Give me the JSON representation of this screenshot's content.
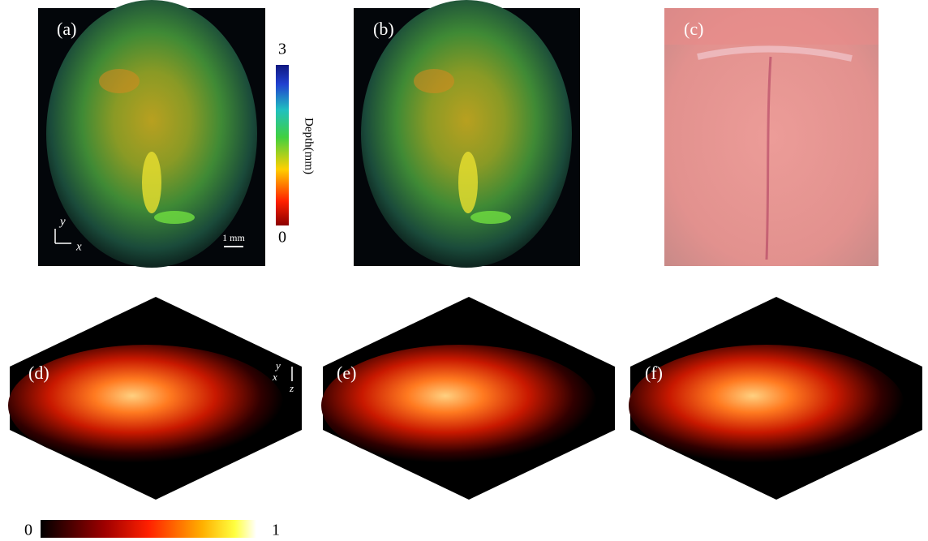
{
  "panels": [
    {
      "label": "(a)"
    },
    {
      "label": "(b)"
    },
    {
      "label": "(c)"
    },
    {
      "label": "(d)"
    },
    {
      "label": "(e)"
    },
    {
      "label": "(f)"
    }
  ],
  "depth_colorbar": {
    "title": "Depth(mm)",
    "max": 3,
    "min": 0
  },
  "scale_bar": "1 mm",
  "axes_a": {
    "y": "y",
    "x": "x"
  },
  "axes_d": {
    "y": "y",
    "x": "x",
    "z": "z"
  },
  "intensity_colorbar": {
    "min": 0,
    "max": 1
  }
}
